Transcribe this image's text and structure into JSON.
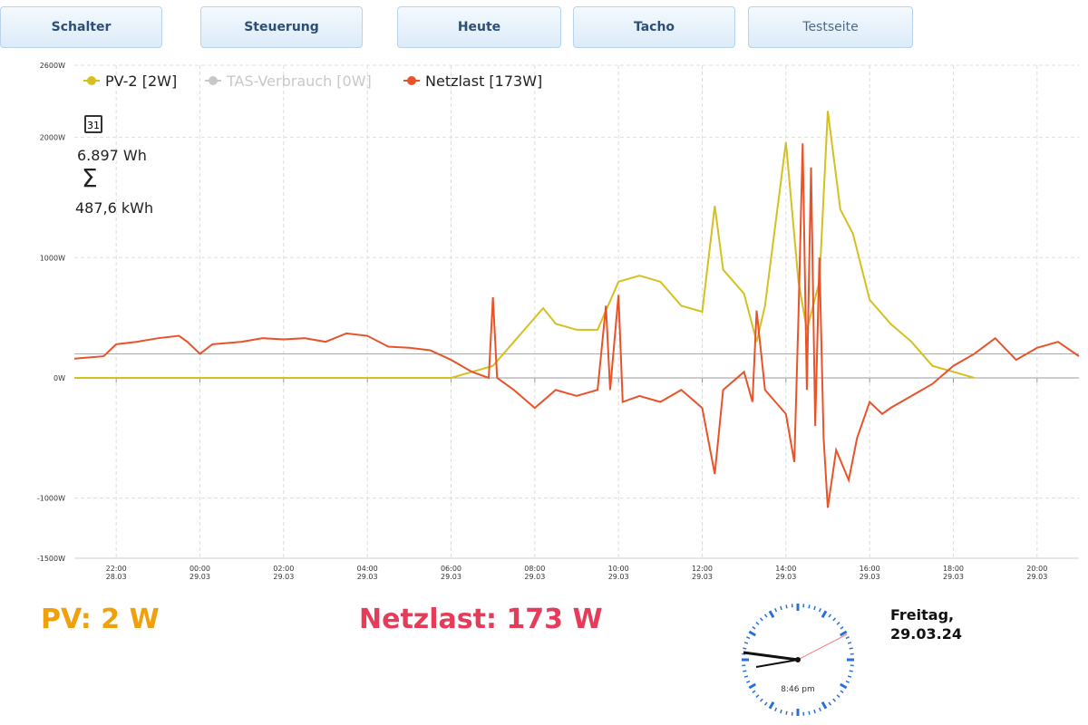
{
  "nav": {
    "tabs": [
      "Schalter",
      "Steuerung",
      "Heute",
      "Tacho",
      "Testseite"
    ]
  },
  "stats": {
    "day": "6.897 Wh",
    "total": "487,6 kWh",
    "calendar_icon": "31",
    "sum_icon": "Σ"
  },
  "chart_data": {
    "type": "line",
    "grid": true,
    "xlim": [
      -3,
      21
    ],
    "xticks": [
      {
        "value": -2,
        "label": "22:00",
        "date": "28.03"
      },
      {
        "value": 0,
        "label": "00:00",
        "date": "29.03"
      },
      {
        "value": 2,
        "label": "02:00",
        "date": "29.03"
      },
      {
        "value": 4,
        "label": "04:00",
        "date": "29.03"
      },
      {
        "value": 6,
        "label": "06:00",
        "date": "29.03"
      },
      {
        "value": 8,
        "label": "08:00",
        "date": "29.03"
      },
      {
        "value": 10,
        "label": "10:00",
        "date": "29.03"
      },
      {
        "value": 12,
        "label": "12:00",
        "date": "29.03"
      },
      {
        "value": 14,
        "label": "14:00",
        "date": "29.03"
      },
      {
        "value": 16,
        "label": "16:00",
        "date": "29.03"
      },
      {
        "value": 18,
        "label": "18:00",
        "date": "29.03"
      },
      {
        "value": 20,
        "label": "20:00",
        "date": "29.03"
      }
    ],
    "ylim": [
      -1500,
      2600
    ],
    "yticks": [
      {
        "value": 2600,
        "label": "2600W"
      },
      {
        "value": 2000,
        "label": "2000W"
      },
      {
        "value": 1000,
        "label": "1000W"
      },
      {
        "value": 0,
        "label": "0W"
      },
      {
        "value": -1000,
        "label": "-1000W"
      },
      {
        "value": -1500,
        "label": "-1500W"
      }
    ],
    "hlines": [
      {
        "value": 200,
        "color": "#aaaaaa"
      }
    ],
    "series": [
      {
        "name": "PV-2 [2W]",
        "color": "#d4c01e",
        "x": [
          -3,
          6,
          6.5,
          7,
          7.5,
          8,
          8.2,
          8.5,
          9,
          9.5,
          10,
          10.5,
          11,
          11.5,
          12,
          12.3,
          12.5,
          13,
          13.3,
          13.5,
          14,
          14.3,
          14.5,
          14.8,
          15,
          15.3,
          15.6,
          16,
          16.5,
          17,
          17.5,
          18,
          18.5
        ],
        "values": [
          0,
          0,
          50,
          100,
          300,
          500,
          580,
          450,
          400,
          400,
          800,
          850,
          800,
          600,
          550,
          1430,
          900,
          700,
          300,
          600,
          1960,
          800,
          400,
          800,
          2220,
          1400,
          1200,
          650,
          450,
          300,
          100,
          50,
          0
        ]
      },
      {
        "name": "TAS-Verbrauch [0W]",
        "color": "#c8c8c8",
        "hidden": true
      },
      {
        "name": "Netzlast [173W]",
        "color": "#e8532a",
        "x": [
          -3,
          -2.3,
          -2,
          -1.5,
          -1,
          -0.5,
          -0.3,
          0,
          0.3,
          1,
          1.5,
          2,
          2.5,
          3,
          3.5,
          4,
          4.5,
          5,
          5.5,
          6,
          6.5,
          6.9,
          7,
          7.1,
          7.5,
          8,
          8.5,
          9,
          9.5,
          9.7,
          9.8,
          10,
          10.1,
          10.5,
          11,
          11.5,
          12,
          12.3,
          12.5,
          13,
          13.2,
          13.3,
          13.5,
          14,
          14.2,
          14.3,
          14.4,
          14.5,
          14.6,
          14.7,
          14.8,
          14.9,
          15,
          15.2,
          15.5,
          15.7,
          16,
          16.3,
          16.5,
          17,
          17.5,
          18,
          18.5,
          19,
          19.5,
          20,
          20.5,
          21
        ],
        "values": [
          160,
          180,
          280,
          300,
          330,
          350,
          300,
          200,
          280,
          300,
          330,
          320,
          330,
          300,
          370,
          350,
          260,
          250,
          230,
          150,
          50,
          0,
          670,
          0,
          -100,
          -250,
          -100,
          -150,
          -100,
          600,
          -100,
          690,
          -200,
          -150,
          -200,
          -100,
          -250,
          -800,
          -100,
          50,
          -200,
          560,
          -100,
          -300,
          -700,
          520,
          1950,
          -100,
          1750,
          -400,
          1000,
          -500,
          -1080,
          -600,
          -850,
          -500,
          -200,
          -300,
          -250,
          -150,
          -50,
          100,
          200,
          330,
          150,
          250,
          300,
          180
        ]
      }
    ]
  },
  "footer": {
    "pv": "PV: 2 W",
    "netzlast": "Netzlast: 173 W",
    "clock_time": "8:46 pm",
    "weekday": "Freitag,",
    "date": "29.03.24"
  }
}
